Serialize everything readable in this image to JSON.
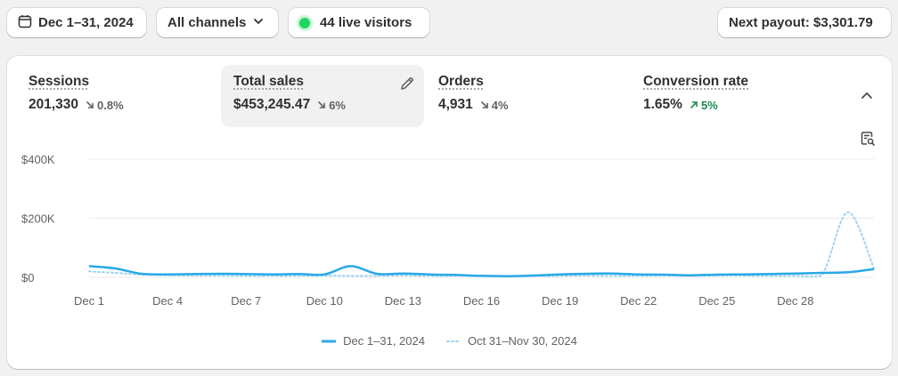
{
  "toolbar": {
    "date_range": "Dec 1–31, 2024",
    "channels": "All channels",
    "live_visitors": "44 live visitors",
    "payout": "Next payout: $3,301.79"
  },
  "metrics": [
    {
      "label": "Sessions",
      "value": "201,330",
      "delta": "0.8%",
      "direction": "down"
    },
    {
      "label": "Total sales",
      "value": "$453,245.47",
      "delta": "6%",
      "direction": "down"
    },
    {
      "label": "Orders",
      "value": "4,931",
      "delta": "4%",
      "direction": "down"
    },
    {
      "label": "Conversion rate",
      "value": "1.65%",
      "delta": "5%",
      "direction": "up"
    }
  ],
  "colors": {
    "current_series": "#29a9e8",
    "previous_series": "#9fd4f0",
    "positive": "#1a8a4f",
    "live": "#1ed760"
  },
  "chart_data": {
    "type": "line",
    "ylabel": "",
    "xlabel": "",
    "y_ticks": [
      "$400K",
      "$200K",
      "$0"
    ],
    "y_tick_values": [
      400000,
      200000,
      0
    ],
    "ylim": [
      0,
      400000
    ],
    "x_tick_labels": [
      "Dec 1",
      "Dec 4",
      "Dec 7",
      "Dec 10",
      "Dec 13",
      "Dec 16",
      "Dec 19",
      "Dec 22",
      "Dec 25",
      "Dec 28"
    ],
    "x_tick_days": [
      1,
      4,
      7,
      10,
      13,
      16,
      19,
      22,
      25,
      28
    ],
    "grid": true,
    "legend": "bottom-center",
    "series": [
      {
        "name": "Dec 1–31, 2024",
        "style": "solid",
        "values": [
          38000,
          30000,
          12000,
          10000,
          11000,
          12000,
          11000,
          10000,
          11000,
          10000,
          38000,
          12000,
          13000,
          10000,
          8000,
          5000,
          4000,
          6000,
          10000,
          12000,
          13000,
          10000,
          9000,
          7000,
          9000,
          10000,
          11000,
          13000,
          15000,
          17000,
          28000
        ]
      },
      {
        "name": "Oct 31–Nov 30, 2024",
        "style": "dotted",
        "values": [
          20000,
          15000,
          9000,
          7000,
          6000,
          6000,
          5000,
          5000,
          5000,
          6000,
          5000,
          5000,
          6000,
          5000,
          5000,
          5000,
          4000,
          5000,
          5000,
          6000,
          5000,
          5000,
          6000,
          5000,
          6000,
          6000,
          5000,
          5000,
          6000,
          220000,
          30000
        ]
      }
    ]
  }
}
